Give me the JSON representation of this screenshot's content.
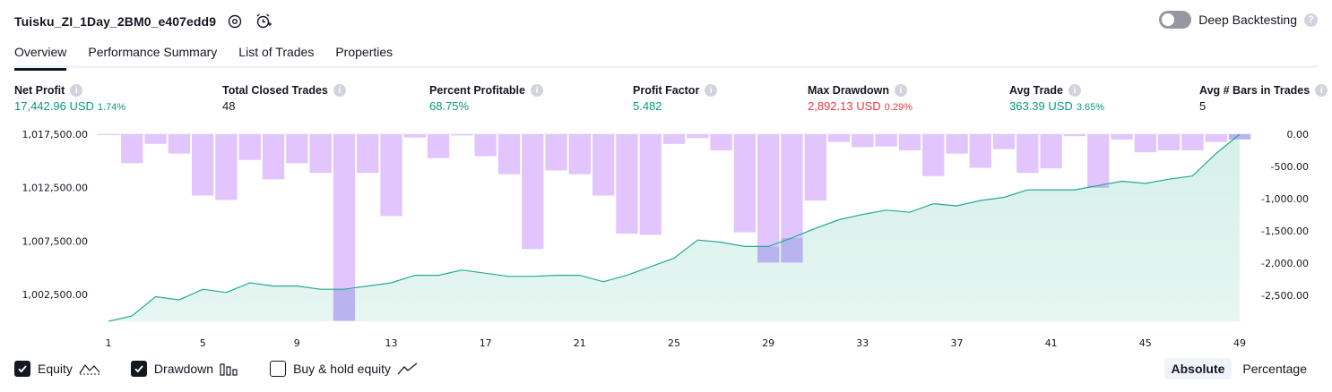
{
  "header": {
    "strategy_name": "Tuisku_ZI_1Day_2BM0_e407edd9"
  },
  "deep_backtesting": {
    "label": "Deep Backtesting",
    "enabled": false
  },
  "tabs": [
    "Overview",
    "Performance Summary",
    "List of Trades",
    "Properties"
  ],
  "active_tab": "Overview",
  "metrics": {
    "net_profit": {
      "label": "Net Profit",
      "value": "17,442.96 USD",
      "pct": "1.74%"
    },
    "total_closed_trades": {
      "label": "Total Closed Trades",
      "value": "48"
    },
    "percent_profitable": {
      "label": "Percent Profitable",
      "value": "68.75%"
    },
    "profit_factor": {
      "label": "Profit Factor",
      "value": "5.482"
    },
    "max_drawdown": {
      "label": "Max Drawdown",
      "value": "2,892.13 USD",
      "pct": "0.29%"
    },
    "avg_trade": {
      "label": "Avg Trade",
      "value": "363.39 USD",
      "pct": "3.65%"
    },
    "avg_bars": {
      "label": "Avg # Bars in Trades",
      "value": "5"
    }
  },
  "legend": {
    "equity": {
      "label": "Equity",
      "checked": true
    },
    "drawdown": {
      "label": "Drawdown",
      "checked": true
    },
    "buy_hold": {
      "label": "Buy & hold equity",
      "checked": false
    }
  },
  "modes": {
    "absolute": "Absolute",
    "percentage": "Percentage",
    "active": "Absolute"
  },
  "colors": {
    "equity_line": "#22ab94",
    "equity_fill": "#d6f0e9",
    "drawdown_bar": "#e1c5fc",
    "drawdown_overlap": "#b9b3ef",
    "positive": "#089981",
    "negative": "#f23645"
  },
  "chart_data": {
    "type": "line",
    "x": [
      1,
      2,
      3,
      4,
      5,
      6,
      7,
      8,
      9,
      10,
      11,
      12,
      13,
      14,
      15,
      16,
      17,
      18,
      19,
      20,
      21,
      22,
      23,
      24,
      25,
      26,
      27,
      28,
      29,
      30,
      31,
      32,
      33,
      34,
      35,
      36,
      37,
      38,
      39,
      40,
      41,
      42,
      43,
      44,
      45,
      46,
      47,
      48,
      49
    ],
    "x_tick_labels": [
      "1",
      "5",
      "9",
      "13",
      "17",
      "21",
      "25",
      "29",
      "33",
      "37",
      "41",
      "45",
      "49"
    ],
    "left_axis": {
      "tick_labels": [
        "1,017,500.00",
        "1,012,500.00",
        "1,007,500.00",
        "1,002,500.00"
      ],
      "ylim": [
        1000000,
        1017500
      ]
    },
    "right_axis": {
      "tick_labels": [
        "0.00",
        "-500.00",
        "-1,000.00",
        "-1,500.00",
        "-2,000.00",
        "-2,500.00"
      ],
      "ylim": [
        -2900,
        0
      ]
    },
    "series": [
      {
        "name": "Equity",
        "axis": "left",
        "values": [
          1000000,
          1000500,
          1002300,
          1002000,
          1003000,
          1002700,
          1003600,
          1003300,
          1003300,
          1003000,
          1003000,
          1003300,
          1003600,
          1004300,
          1004300,
          1004800,
          1004500,
          1004200,
          1004200,
          1004300,
          1004300,
          1003700,
          1004300,
          1005100,
          1005900,
          1007600,
          1007400,
          1007000,
          1007000,
          1007800,
          1008700,
          1009500,
          1010000,
          1010400,
          1010200,
          1011000,
          1010800,
          1011300,
          1011600,
          1012300,
          1012300,
          1012300,
          1012700,
          1013100,
          1012900,
          1013300,
          1013600,
          1015700,
          1017500
        ]
      },
      {
        "name": "Drawdown",
        "axis": "right",
        "values": [
          -10,
          -450,
          -150,
          -300,
          -950,
          -1020,
          -400,
          -700,
          -450,
          -600,
          -2892,
          -600,
          -1270,
          -50,
          -370,
          -20,
          -340,
          -620,
          -1780,
          -560,
          -620,
          -950,
          -1540,
          -1560,
          -150,
          -60,
          -250,
          -1520,
          -1990,
          -1990,
          -1030,
          -120,
          -200,
          -190,
          -250,
          -650,
          -300,
          -520,
          -230,
          -600,
          -530,
          -30,
          -830,
          -80,
          -280,
          -250,
          -250,
          -120,
          -80
        ]
      }
    ],
    "grid": false
  }
}
